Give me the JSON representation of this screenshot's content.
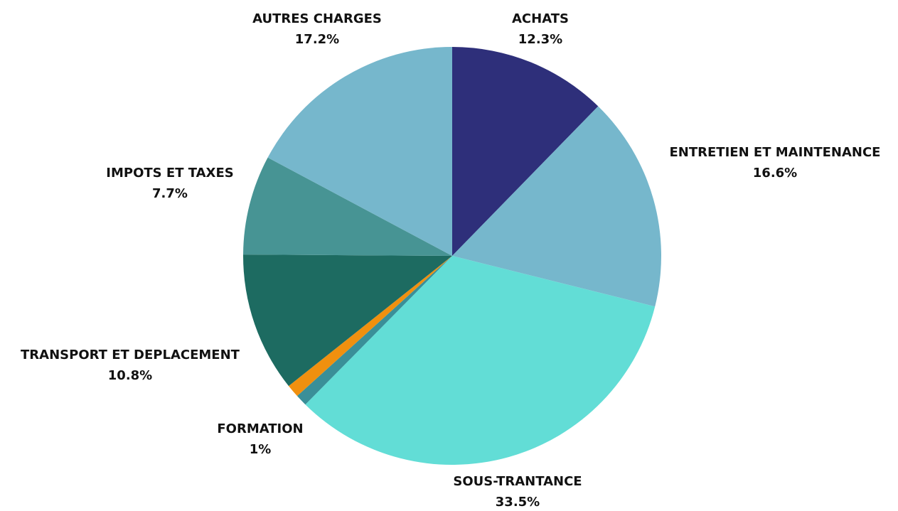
{
  "chart_data": {
    "type": "pie",
    "categories": [
      "ACHATS",
      "ENTRETIEN ET MAINTENANCE",
      "SOUS-TRANTANCE",
      null,
      "FORMATION",
      "TRANSPORT ET DEPLACEMENT",
      "IMPOTS ET TAXES",
      "AUTRES CHARGES"
    ],
    "values": [
      12.3,
      16.6,
      33.5,
      0.9,
      1,
      10.8,
      7.7,
      17.2
    ],
    "value_labels": [
      "12.3%",
      "16.6%",
      "33.5%",
      null,
      "1%",
      "10.8%",
      "7.7%",
      "17.2%"
    ],
    "colors": [
      "#2e2f7a",
      "#76b7cc",
      "#62ddd6",
      "#3a8f98",
      "#f0900f",
      "#1d6b61",
      "#479494",
      "#76b7cc"
    ]
  }
}
